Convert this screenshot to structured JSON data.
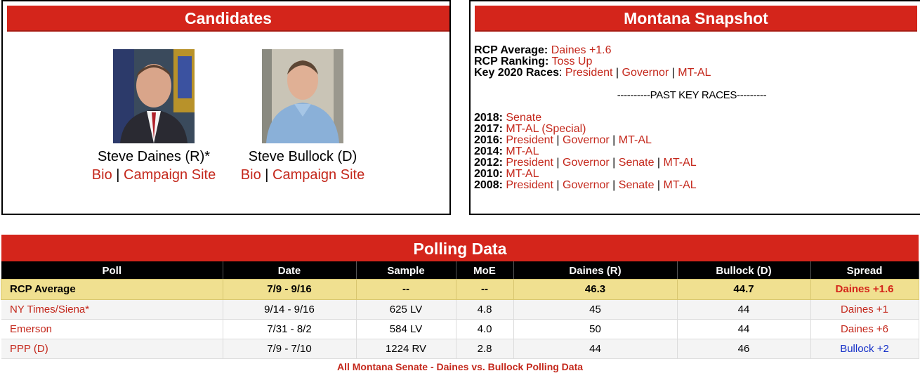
{
  "candidates": {
    "title": "Candidates",
    "list": [
      {
        "name": "Steve Daines (R)*",
        "bio": "Bio",
        "site": "Campaign Site"
      },
      {
        "name": "Steve Bullock (D)",
        "bio": "Bio",
        "site": "Campaign Site"
      }
    ]
  },
  "snapshot": {
    "title": "Montana Snapshot",
    "rcp_average_label": "RCP Average:",
    "rcp_average_value": "Daines +1.6",
    "rcp_ranking_label": "RCP Ranking:",
    "rcp_ranking_value": "Toss Up",
    "key_races_label": "Key 2020 Races",
    "key_races": [
      "President",
      "Governor",
      "MT-AL"
    ],
    "past_header": "----------PAST KEY RACES---------",
    "past": [
      {
        "year": "2018:",
        "links": [
          "Senate"
        ]
      },
      {
        "year": "2017:",
        "links": [
          "MT-AL (Special)"
        ]
      },
      {
        "year": "2016:",
        "links": [
          "President",
          "Governor",
          "MT-AL"
        ]
      },
      {
        "year": "2014:",
        "links": [
          "MT-AL"
        ]
      },
      {
        "year": "2012:",
        "links": [
          "President",
          "Governor",
          "Senate",
          "MT-AL"
        ]
      },
      {
        "year": "2010:",
        "links": [
          "MT-AL"
        ]
      },
      {
        "year": "2008:",
        "links": [
          "President",
          "Governor",
          "Senate",
          "MT-AL"
        ]
      }
    ]
  },
  "polling": {
    "title": "Polling Data",
    "columns": [
      "Poll",
      "Date",
      "Sample",
      "MoE",
      "Daines (R)",
      "Bullock (D)",
      "Spread"
    ],
    "average": {
      "poll": "RCP Average",
      "date": "7/9 - 9/16",
      "sample": "--",
      "moe": "--",
      "daines": "46.3",
      "bullock": "44.7",
      "spread": "Daines +1.6"
    },
    "rows": [
      {
        "poll": "NY Times/Siena*",
        "date": "9/14 - 9/16",
        "sample": "625 LV",
        "moe": "4.8",
        "daines": "45",
        "bullock": "44",
        "spread": "Daines +1",
        "spread_party": "R"
      },
      {
        "poll": "Emerson",
        "date": "7/31 - 8/2",
        "sample": "584 LV",
        "moe": "4.0",
        "daines": "50",
        "bullock": "44",
        "spread": "Daines +6",
        "spread_party": "R"
      },
      {
        "poll": "PPP (D)",
        "date": "7/9 - 7/10",
        "sample": "1224 RV",
        "moe": "2.8",
        "daines": "44",
        "bullock": "46",
        "spread": "Bullock +2",
        "spread_party": "D"
      }
    ],
    "footer_link": "All Montana Senate - Daines vs. Bullock Polling Data"
  },
  "colors": {
    "header_red": "#d4251b",
    "link_red": "#c4281c",
    "avg_yellow": "#f0e090",
    "dem_blue": "#1530c8"
  }
}
